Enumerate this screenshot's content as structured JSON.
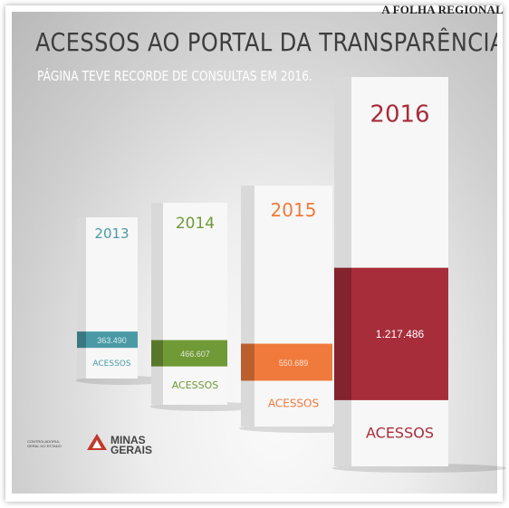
{
  "newspaper": "A FOLHA REGIONAL",
  "colors": {
    "2013": "#4a9aa6",
    "2014": "#6f9a36",
    "2015": "#f07a3c",
    "2016": "#a72d3a"
  },
  "chart_data": {
    "type": "bar",
    "title": "ACESSOS AO PORTAL DA TRANSPARÊNCIA",
    "subtitle": "PÁGINA TEVE RECORDE DE CONSULTAS EM 2016.",
    "categories": [
      "2013",
      "2014",
      "2015",
      "2016"
    ],
    "values": [
      363490,
      466607,
      550689,
      1217486
    ],
    "value_labels": [
      "363.490",
      "466.607",
      "550.689",
      "1.217.486"
    ],
    "unit_label": "ACESSOS"
  },
  "logo": {
    "small_text": "CONTROLADORIA-GERAL DO ESTADO",
    "name_line1": "MINAS",
    "name_line2": "GERAIS"
  }
}
